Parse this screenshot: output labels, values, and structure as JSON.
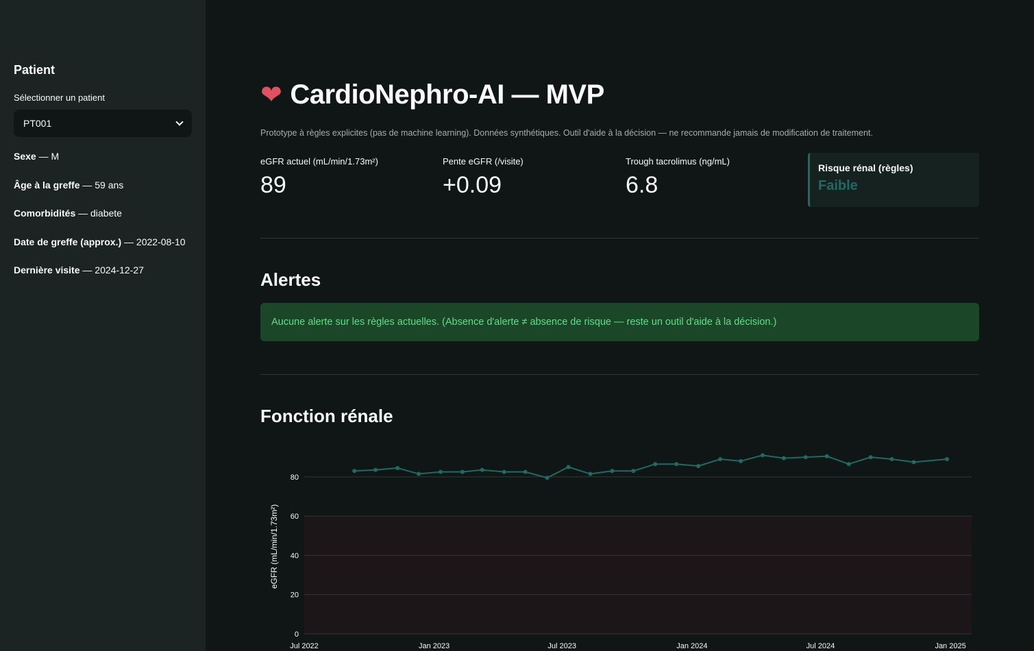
{
  "sidebar": {
    "header": "Patient",
    "select_label": "Sélectionner un patient",
    "select_value": "PT001",
    "info": [
      {
        "label": "Sexe",
        "value": "— M"
      },
      {
        "label": "Âge à la greffe",
        "value": "— 59 ans"
      },
      {
        "label": "Comorbidités",
        "value": "— diabete"
      },
      {
        "label": "Date de greffe (approx.)",
        "value": "— 2022-08-10"
      },
      {
        "label": "Dernière visite",
        "value": "— 2024-12-27"
      }
    ]
  },
  "main": {
    "title_icon": "anatomical-heart-icon",
    "title": "CardioNephro-AI — MVP",
    "subtitle": "Prototype à règles explicites (pas de machine learning). Données synthétiques. Outil d'aide à la décision — ne recommande jamais de modification de traitement.",
    "metrics": [
      {
        "label": "eGFR actuel (mL/min/1.73m²)",
        "value": "89"
      },
      {
        "label": "Pente eGFR (/visite)",
        "value": "+0.09"
      },
      {
        "label": "Trough tacrolimus (ng/mL)",
        "value": "6.8"
      }
    ],
    "risk": {
      "label": "Risque rénal (règles)",
      "value": "Faible",
      "color": "#1e6b63"
    },
    "alerts_title": "Alertes",
    "alert_message": "Aucune alerte sur les règles actuelles. (Absence d'alerte ≠ absence de risque — reste un outil d'aide à la décision.)",
    "renal_title": "Fonction rénale"
  },
  "colors": {
    "accent": "#1e6b63",
    "success_bg": "#1b4628",
    "success_text": "#5be08a",
    "sidebar_bg": "#1b2423",
    "main_bg": "#101615",
    "danger_band": "#1c1618"
  },
  "chart_data": {
    "type": "line",
    "ylabel": "eGFR (mL/min/1.73m²)",
    "xlabel": "",
    "ylim": [
      0,
      96
    ],
    "xlim": [
      "2022-07-01",
      "2025-01-31"
    ],
    "yticks": [
      0,
      20,
      40,
      60,
      80
    ],
    "xticks": [
      "Jul 2022",
      "Jan 2023",
      "Jul 2023",
      "Jan 2024",
      "Jul 2024",
      "Jan 2025"
    ],
    "shaded_band": {
      "from": 0,
      "to": 60
    },
    "grid": true,
    "series": [
      {
        "x": [
          "2022-09-10",
          "2022-10-10",
          "2022-11-10",
          "2022-12-10",
          "2023-01-10",
          "2023-02-10",
          "2023-03-10",
          "2023-04-10",
          "2023-05-10",
          "2023-06-10",
          "2023-07-10",
          "2023-08-10",
          "2023-09-10",
          "2023-10-10",
          "2023-11-10",
          "2023-12-10",
          "2024-01-10",
          "2024-02-10",
          "2024-03-10",
          "2024-04-10",
          "2024-05-10",
          "2024-06-10",
          "2024-07-10",
          "2024-08-10",
          "2024-09-10",
          "2024-10-10",
          "2024-11-10",
          "2024-12-27"
        ],
        "values": [
          83,
          83.5,
          84.5,
          81.5,
          82.5,
          82.5,
          83.5,
          82.5,
          82.5,
          79.5,
          85,
          81.5,
          83,
          83,
          86.5,
          86.5,
          85.5,
          89,
          88,
          91,
          89.5,
          90,
          90.5,
          86.5,
          90,
          89,
          87.5,
          89
        ]
      }
    ]
  }
}
